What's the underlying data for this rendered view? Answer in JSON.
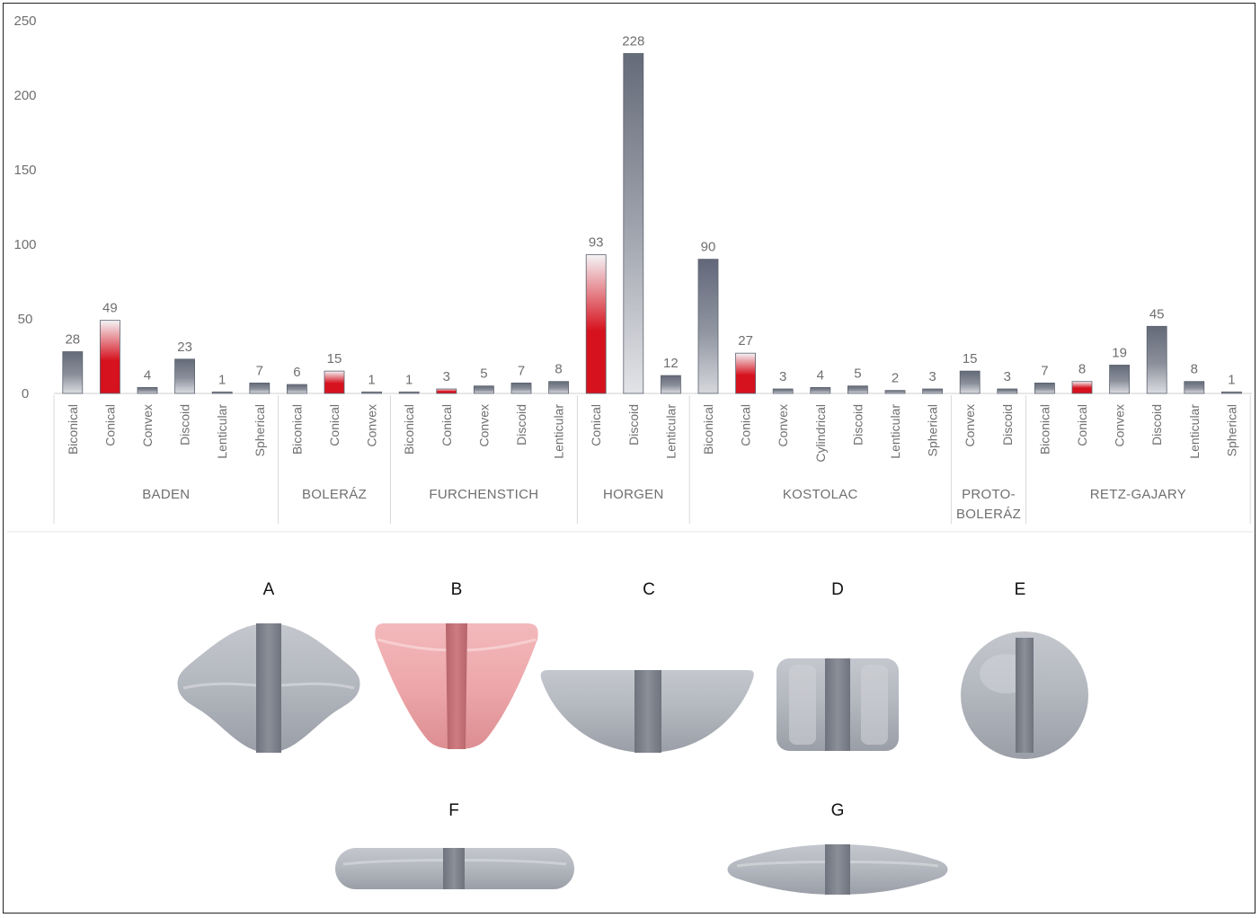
{
  "chart_data": {
    "type": "bar",
    "ylim": [
      0,
      250
    ],
    "yticks": [
      0,
      50,
      100,
      150,
      200,
      250
    ],
    "groups": [
      {
        "name": "BADEN",
        "bars": [
          {
            "category": "Biconical",
            "value": 28
          },
          {
            "category": "Conical",
            "value": 49
          },
          {
            "category": "Convex",
            "value": 4
          },
          {
            "category": "Discoid",
            "value": 23
          },
          {
            "category": "Lenticular",
            "value": 1
          },
          {
            "category": "Spherical",
            "value": 7
          }
        ]
      },
      {
        "name": "BOLERÁZ",
        "bars": [
          {
            "category": "Biconical",
            "value": 6
          },
          {
            "category": "Conical",
            "value": 15
          },
          {
            "category": "Convex",
            "value": 1
          }
        ]
      },
      {
        "name": "FURCHENSTICH",
        "bars": [
          {
            "category": "Biconical",
            "value": 1
          },
          {
            "category": "Conical",
            "value": 3
          },
          {
            "category": "Convex",
            "value": 5
          },
          {
            "category": "Discoid",
            "value": 7
          },
          {
            "category": "Lenticular",
            "value": 8
          }
        ]
      },
      {
        "name": "HORGEN",
        "bars": [
          {
            "category": "Conical",
            "value": 93
          },
          {
            "category": "Discoid",
            "value": 228
          },
          {
            "category": "Lenticular",
            "value": 12
          }
        ]
      },
      {
        "name": "KOSTOLAC",
        "bars": [
          {
            "category": "Biconical",
            "value": 90
          },
          {
            "category": "Conical",
            "value": 27
          },
          {
            "category": "Convex",
            "value": 3
          },
          {
            "category": "Cylindrical",
            "value": 4
          },
          {
            "category": "Discoid",
            "value": 5
          },
          {
            "category": "Lenticular",
            "value": 2
          },
          {
            "category": "Spherical",
            "value": 3
          }
        ]
      },
      {
        "name": "PROTO-BOLERÁZ",
        "name_lines": [
          "PROTO-",
          "BOLERÁZ"
        ],
        "bars": [
          {
            "category": "Convex",
            "value": 15
          },
          {
            "category": "Discoid",
            "value": 3
          }
        ]
      },
      {
        "name": "RETZ-GAJARY",
        "bars": [
          {
            "category": "Biconical",
            "value": 7
          },
          {
            "category": "Conical",
            "value": 8
          },
          {
            "category": "Convex",
            "value": 19
          },
          {
            "category": "Discoid",
            "value": 45
          },
          {
            "category": "Lenticular",
            "value": 8
          },
          {
            "category": "Spherical",
            "value": 1
          }
        ]
      }
    ],
    "colors": {
      "dark": "#646a78",
      "light": "#e6e6ea",
      "red": "#d6121e",
      "conical_gradient": [
        "#d6121e",
        "#f4f4f6"
      ]
    }
  },
  "shapes": [
    {
      "label": "A",
      "type": "biconical"
    },
    {
      "label": "B",
      "type": "conical"
    },
    {
      "label": "C",
      "type": "convex"
    },
    {
      "label": "D",
      "type": "cylindrical"
    },
    {
      "label": "E",
      "type": "spherical"
    },
    {
      "label": "F",
      "type": "discoid"
    },
    {
      "label": "G",
      "type": "lenticular"
    }
  ]
}
